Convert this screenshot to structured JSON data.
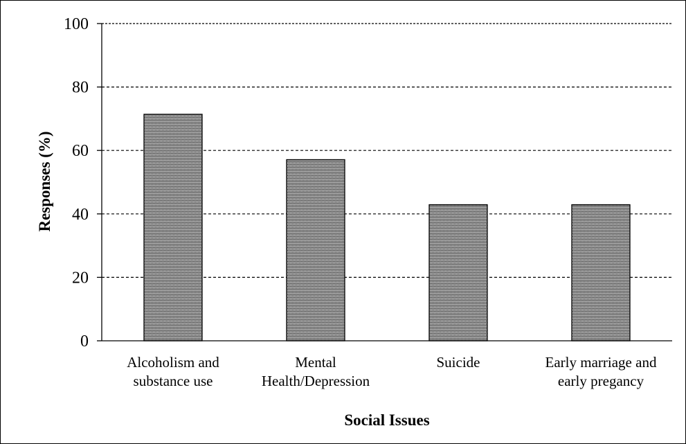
{
  "chart_data": {
    "type": "bar",
    "categories": [
      [
        "Alcoholism and",
        "substance use"
      ],
      [
        "Mental",
        "Health/Depression"
      ],
      [
        "Suicide"
      ],
      [
        "Early marriage and",
        "early pregancy"
      ]
    ],
    "values": [
      71.4,
      57.1,
      42.9,
      42.9
    ],
    "xlabel": "Social Issues",
    "ylabel": "Responses (%)",
    "ylim": [
      0,
      100
    ],
    "yticks": [
      0,
      20,
      40,
      60,
      80,
      100
    ],
    "grid": true,
    "grid_style": "dashed",
    "bar_fill": "crosshatch gray",
    "colors": {
      "bar_border": "#000000",
      "grid": "#000000",
      "axis": "#000000"
    }
  }
}
